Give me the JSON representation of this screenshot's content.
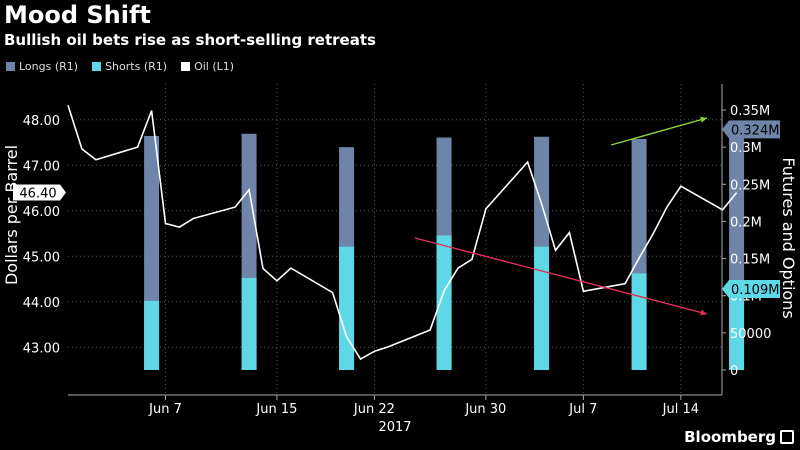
{
  "header": {
    "title": "Mood Shift",
    "subtitle": "Bullish oil bets rise as short-selling retreats"
  },
  "legend": [
    {
      "label": "Longs (R1)",
      "color": "#6e84a8"
    },
    {
      "label": "Shorts (R1)",
      "color": "#5ed8e6"
    },
    {
      "label": "Oil (L1)",
      "color": "#ffffff"
    }
  ],
  "brand": "Bloomberg",
  "chart_data": {
    "type": "bar",
    "title": "Mood Shift",
    "subtitle": "Bullish oil bets rise as short-selling retreats",
    "year_label": "2017",
    "y_left": {
      "label": "Dollars per Barrel",
      "range": [
        42.5,
        48.5
      ],
      "ticks": [
        "43.00",
        "44.00",
        "45.00",
        "46.00",
        "47.00",
        "48.00"
      ]
    },
    "y_right": {
      "label": "Futures and Options",
      "range": [
        0,
        350000
      ],
      "ticks": [
        "0",
        "50000",
        "0.1M",
        "0.15M",
        "0.2M",
        "0.25M",
        "0.3M",
        "0.35M"
      ]
    },
    "x_ticks": [
      "Jun 7",
      "Jun 15",
      "Jun 22",
      "Jun 30",
      "Jul 7",
      "Jul 14"
    ],
    "bars": {
      "dates": [
        "2017-06-06",
        "2017-06-13",
        "2017-06-20",
        "2017-06-27",
        "2017-07-04",
        "2017-07-11",
        "2017-07-18"
      ],
      "longs": [
        315000,
        318000,
        300000,
        313000,
        314000,
        311000,
        324000
      ],
      "shorts": [
        93000,
        124000,
        166000,
        181000,
        166000,
        130000,
        109000
      ]
    },
    "oil": {
      "dates": [
        "2017-05-31",
        "2017-06-01",
        "2017-06-02",
        "2017-06-05",
        "2017-06-06",
        "2017-06-07",
        "2017-06-08",
        "2017-06-09",
        "2017-06-12",
        "2017-06-13",
        "2017-06-14",
        "2017-06-15",
        "2017-06-16",
        "2017-06-19",
        "2017-06-20",
        "2017-06-21",
        "2017-06-22",
        "2017-06-23",
        "2017-06-26",
        "2017-06-27",
        "2017-06-28",
        "2017-06-29",
        "2017-06-30",
        "2017-07-03",
        "2017-07-04",
        "2017-07-05",
        "2017-07-06",
        "2017-07-07",
        "2017-07-10",
        "2017-07-11",
        "2017-07-12",
        "2017-07-13",
        "2017-07-14",
        "2017-07-17",
        "2017-07-18"
      ],
      "values": [
        48.32,
        47.36,
        47.12,
        47.4,
        48.2,
        45.72,
        45.64,
        45.83,
        46.08,
        46.46,
        44.73,
        44.46,
        44.74,
        44.2,
        43.23,
        42.74,
        42.91,
        43.01,
        43.38,
        44.24,
        44.74,
        44.93,
        46.04,
        47.07,
        46.15,
        45.13,
        45.52,
        44.23,
        44.4,
        44.96,
        45.49,
        46.08,
        46.54,
        46.02,
        46.4
      ]
    },
    "annotations": {
      "oil_last_label": "46.40",
      "longs_last_label": "0.324M",
      "shorts_last_label": "0.109M"
    },
    "grid": true
  }
}
